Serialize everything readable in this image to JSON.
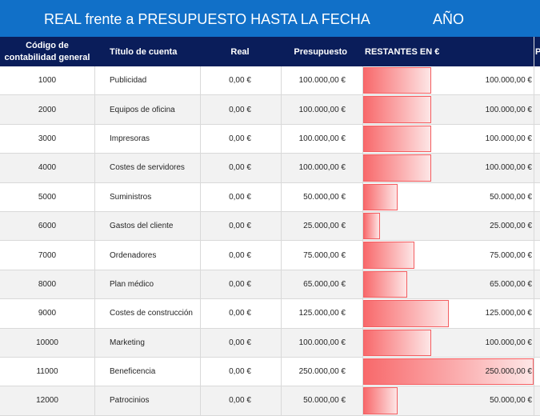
{
  "header": {
    "title": "REAL frente a PRESUPUESTO HASTA LA FECHA",
    "year_label": "AÑO"
  },
  "columns": {
    "code": "Código de contabilidad general",
    "title": "Título de cuenta",
    "real": "Real",
    "budget": "Presupuesto",
    "remaining": "RESTANTES EN €",
    "extra": "P"
  },
  "colors": {
    "title_bar": "#1170c8",
    "header_row": "#0a1d5a",
    "data_bar": "#f8696b"
  },
  "rows": [
    {
      "code": "1000",
      "title": "Publicidad",
      "real": "0,00 €",
      "budget": "100.000,00 €",
      "remaining": "100.000,00 €",
      "remaining_value": 100000
    },
    {
      "code": "2000",
      "title": "Equipos de oficina",
      "real": "0,00 €",
      "budget": "100.000,00 €",
      "remaining": "100.000,00 €",
      "remaining_value": 100000
    },
    {
      "code": "3000",
      "title": "Impresoras",
      "real": "0,00 €",
      "budget": "100.000,00 €",
      "remaining": "100.000,00 €",
      "remaining_value": 100000
    },
    {
      "code": "4000",
      "title": "Costes de servidores",
      "real": "0,00 €",
      "budget": "100.000,00 €",
      "remaining": "100.000,00 €",
      "remaining_value": 100000
    },
    {
      "code": "5000",
      "title": "Suministros",
      "real": "0,00 €",
      "budget": "50.000,00 €",
      "remaining": "50.000,00 €",
      "remaining_value": 50000
    },
    {
      "code": "6000",
      "title": "Gastos del cliente",
      "real": "0,00 €",
      "budget": "25.000,00 €",
      "remaining": "25.000,00 €",
      "remaining_value": 25000
    },
    {
      "code": "7000",
      "title": "Ordenadores",
      "real": "0,00 €",
      "budget": "75.000,00 €",
      "remaining": "75.000,00 €",
      "remaining_value": 75000
    },
    {
      "code": "8000",
      "title": "Plan médico",
      "real": "0,00 €",
      "budget": "65.000,00 €",
      "remaining": "65.000,00 €",
      "remaining_value": 65000
    },
    {
      "code": "9000",
      "title": "Costes de construcción",
      "real": "0,00 €",
      "budget": "125.000,00 €",
      "remaining": "125.000,00 €",
      "remaining_value": 125000
    },
    {
      "code": "10000",
      "title": "Marketing",
      "real": "0,00 €",
      "budget": "100.000,00 €",
      "remaining": "100.000,00 €",
      "remaining_value": 100000
    },
    {
      "code": "11000",
      "title": "Beneficencia",
      "real": "0,00 €",
      "budget": "250.000,00 €",
      "remaining": "250.000,00 €",
      "remaining_value": 250000
    },
    {
      "code": "12000",
      "title": "Patrocinios",
      "real": "0,00 €",
      "budget": "50.000,00 €",
      "remaining": "50.000,00 €",
      "remaining_value": 50000
    }
  ]
}
